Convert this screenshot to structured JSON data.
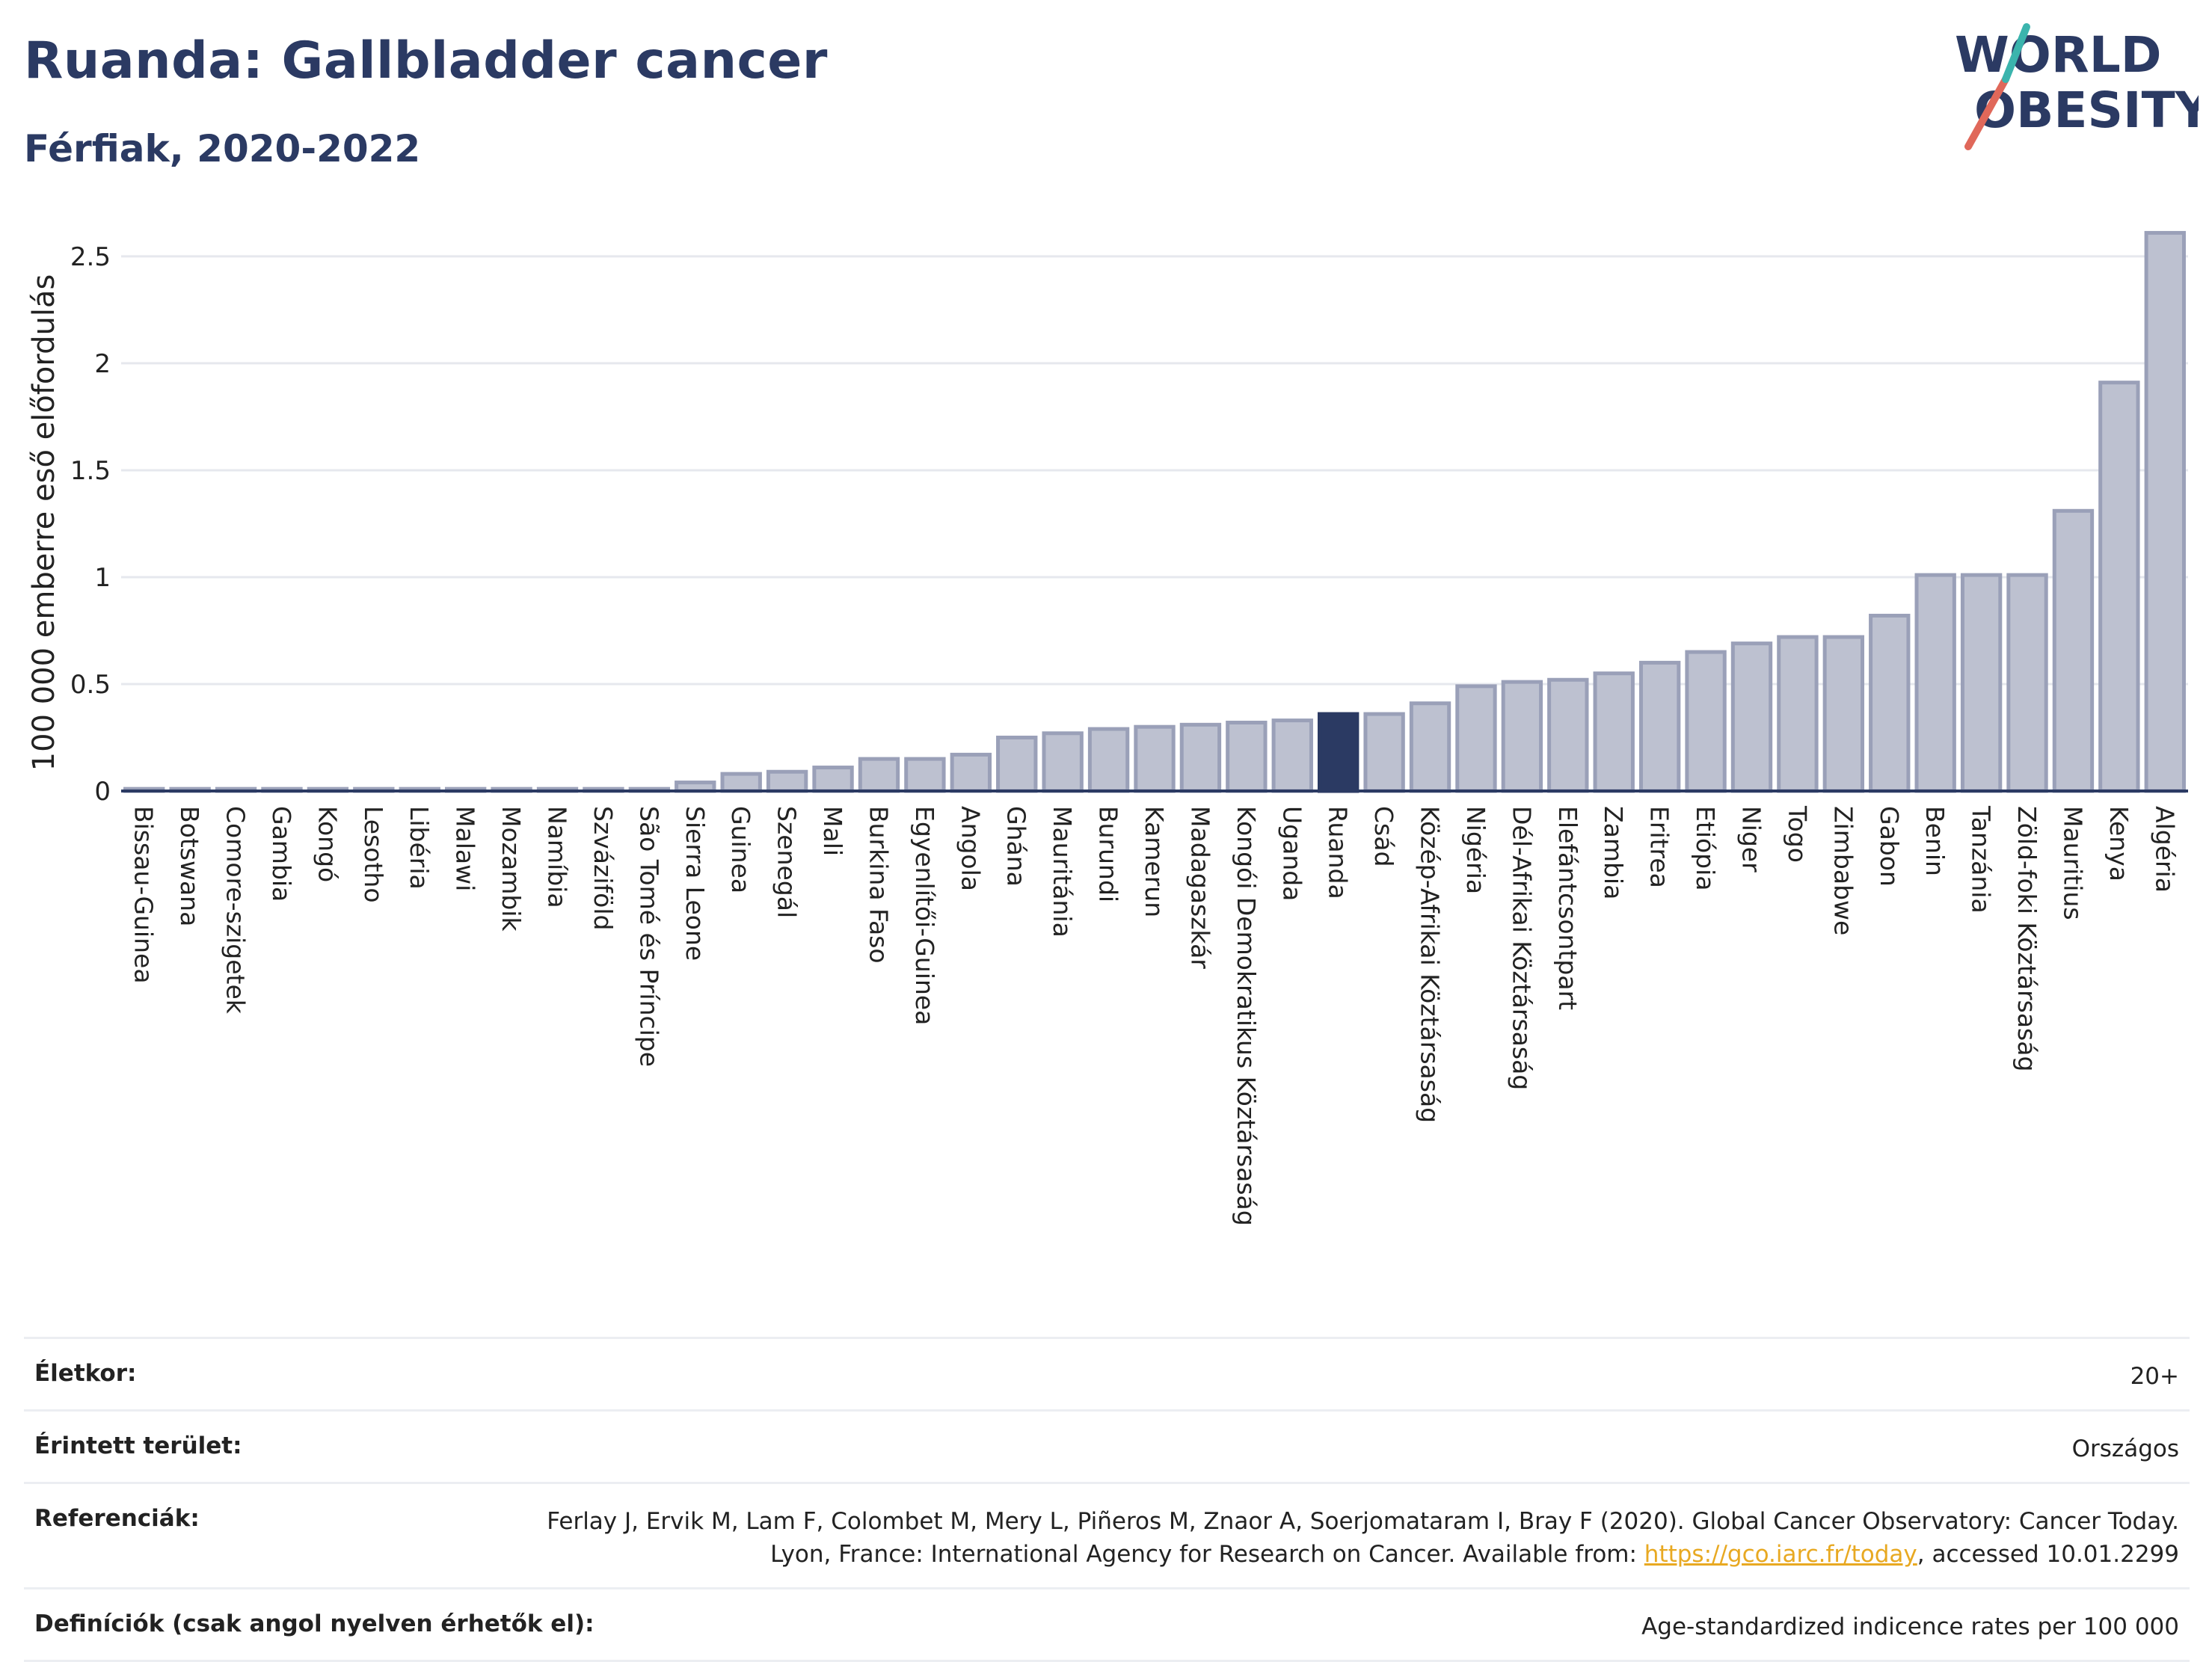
{
  "title": "Ruanda: Gallbladder cancer",
  "subtitle": "Férfiak, 2020-2022",
  "logo": {
    "line1": "WORLD",
    "line2": "OBESITY"
  },
  "colors": {
    "bar": "#bdc1d0",
    "bar_stroke": "#9aa0b8",
    "highlight": "#2b3a63",
    "title": "#2b3a63",
    "grid": "#e6e8ee",
    "logo_red": "#e0685a",
    "logo_teal": "#3bb4ad"
  },
  "chart_data": {
    "type": "bar",
    "ylabel": "100 000 emberre eső előfordulás",
    "ylim": [
      0,
      2.65
    ],
    "yticks": [
      0,
      0.5,
      1,
      1.5,
      2,
      2.5
    ],
    "ytick_labels": [
      "0",
      "0.5",
      "1",
      "1.5",
      "2",
      "2.5"
    ],
    "highlight": "Ruanda",
    "categories": [
      "Bissau-Guinea",
      "Botswana",
      "Comore-szigetek",
      "Gambia",
      "Kongó",
      "Lesotho",
      "Libéria",
      "Malawi",
      "Mozambik",
      "Namíbia",
      "Szváziföld",
      "São Tomé és Príncipe",
      "Sierra Leone",
      "Guinea",
      "Szenegál",
      "Mali",
      "Burkina Faso",
      "Egyenlítői-Guinea",
      "Angola",
      "Ghána",
      "Mauritánia",
      "Burundi",
      "Kamerun",
      "Madagaszkár",
      "Kongói Demokratikus Köztársaság",
      "Uganda",
      "Ruanda",
      "Csád",
      "Közép-Afrikai Köztársaság",
      "Nigéria",
      "Dél-Afrikai Köztársaság",
      "Elefántcsontpart",
      "Zambia",
      "Eritrea",
      "Etiópia",
      "Niger",
      "Togo",
      "Zimbabwe",
      "Gabon",
      "Benin",
      "Tanzánia",
      "Zöld-foki Köztársaság",
      "Mauritius",
      "Kenya",
      "Algéria"
    ],
    "values": [
      0.01,
      0.01,
      0.01,
      0.01,
      0.01,
      0.01,
      0.01,
      0.01,
      0.01,
      0.01,
      0.01,
      0.01,
      0.04,
      0.08,
      0.09,
      0.11,
      0.15,
      0.15,
      0.17,
      0.25,
      0.27,
      0.29,
      0.3,
      0.31,
      0.32,
      0.33,
      0.36,
      0.36,
      0.41,
      0.49,
      0.51,
      0.52,
      0.55,
      0.6,
      0.65,
      0.69,
      0.72,
      0.72,
      0.82,
      1.01,
      1.01,
      1.01,
      1.31,
      1.91,
      2.61
    ]
  },
  "info": [
    {
      "key": "Életkor:",
      "value": "20+"
    },
    {
      "key": "Érintett terület:",
      "value": "Országos"
    },
    {
      "key": "Referenciák:",
      "value_before": "Ferlay J, Ervik M, Lam F, Colombet M, Mery L, Piñeros M, Znaor A, Soerjomataram I, Bray F (2020). Global Cancer Observatory: Cancer Today. Lyon, France: International Agency for Research on Cancer. Available from: ",
      "link": "https://gco.iarc.fr/today",
      "value_after": ", accessed 10.01.2299"
    },
    {
      "key": "Definíciók (csak angol nyelven érhetők el):",
      "value": "Age-standardized indicence rates per 100 000"
    }
  ]
}
